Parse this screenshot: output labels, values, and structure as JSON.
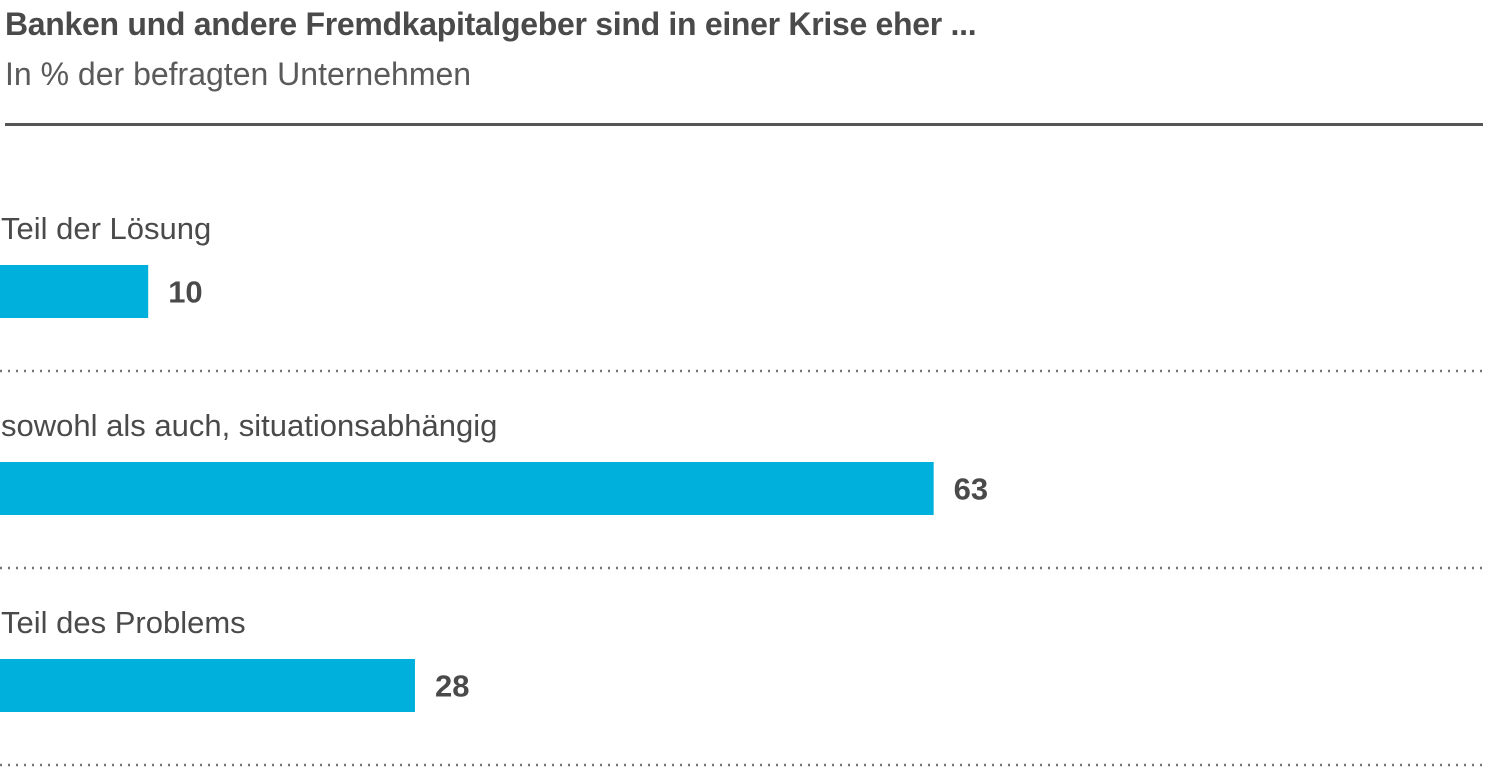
{
  "chart_data": {
    "type": "bar",
    "orientation": "horizontal",
    "title": "Banken und andere Fremdkapitalgeber sind in einer Krise eher ...",
    "subtitle": "In % der befragten Unternehmen",
    "categories": [
      "Teil der Lösung",
      "sowohl als auch, situationsabhängig",
      "Teil des Problems"
    ],
    "values": [
      10,
      63,
      28
    ],
    "unit": "%",
    "xlim": [
      0,
      100
    ],
    "grid": false,
    "legend": "none",
    "data_labels": true,
    "colors": {
      "bar": "#00b0dc",
      "text": "#4a4a4a",
      "separator": "#777777",
      "rule": "#555555"
    }
  }
}
